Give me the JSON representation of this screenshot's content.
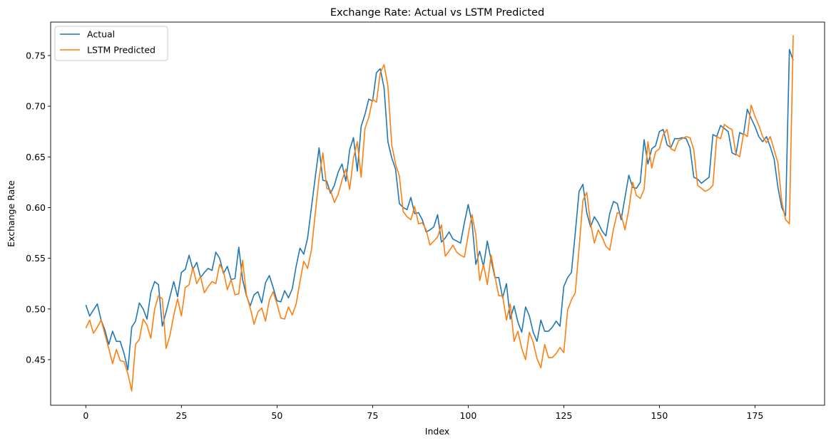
{
  "chart_data": {
    "type": "line",
    "title": "Exchange Rate: Actual vs LSTM Predicted",
    "xlabel": "Index",
    "ylabel": "Exchange Rate",
    "xlim": [
      -9.2,
      193.2
    ],
    "ylim": [
      0.405,
      0.783
    ],
    "x_ticks": [
      0,
      25,
      50,
      75,
      100,
      125,
      150,
      175
    ],
    "y_ticks": [
      0.45,
      0.5,
      0.55,
      0.6,
      0.65,
      0.7,
      0.75
    ],
    "x_tick_labels": [
      "0",
      "25",
      "50",
      "75",
      "100",
      "125",
      "150",
      "175"
    ],
    "y_tick_labels": [
      "0.45",
      "0.50",
      "0.55",
      "0.60",
      "0.65",
      "0.70",
      "0.75"
    ],
    "grid": false,
    "legend_position": "top-left",
    "series": [
      {
        "name": "Actual",
        "color": "#1f77b4",
        "values": [
          0.504,
          0.493,
          0.499,
          0.505,
          0.489,
          0.479,
          0.465,
          0.478,
          0.468,
          0.468,
          0.456,
          0.44,
          0.482,
          0.488,
          0.506,
          0.5,
          0.49,
          0.516,
          0.527,
          0.524,
          0.483,
          0.497,
          0.512,
          0.527,
          0.512,
          0.536,
          0.539,
          0.553,
          0.539,
          0.546,
          0.531,
          0.536,
          0.54,
          0.538,
          0.556,
          0.55,
          0.535,
          0.542,
          0.529,
          0.53,
          0.561,
          0.529,
          0.513,
          0.503,
          0.514,
          0.517,
          0.506,
          0.526,
          0.533,
          0.521,
          0.508,
          0.507,
          0.518,
          0.511,
          0.52,
          0.542,
          0.56,
          0.554,
          0.57,
          0.6,
          0.63,
          0.659,
          0.627,
          0.626,
          0.614,
          0.622,
          0.635,
          0.643,
          0.626,
          0.657,
          0.669,
          0.636,
          0.68,
          0.692,
          0.707,
          0.705,
          0.733,
          0.737,
          0.718,
          0.665,
          0.649,
          0.638,
          0.604,
          0.6,
          0.598,
          0.61,
          0.594,
          0.595,
          0.588,
          0.576,
          0.578,
          0.581,
          0.593,
          0.566,
          0.57,
          0.576,
          0.569,
          0.567,
          0.565,
          0.585,
          0.603,
          0.585,
          0.544,
          0.557,
          0.542,
          0.567,
          0.548,
          0.531,
          0.531,
          0.511,
          0.525,
          0.49,
          0.503,
          0.487,
          0.477,
          0.502,
          0.493,
          0.477,
          0.468,
          0.489,
          0.478,
          0.478,
          0.482,
          0.488,
          0.483,
          0.522,
          0.531,
          0.536,
          0.575,
          0.616,
          0.623,
          0.595,
          0.581,
          0.591,
          0.585,
          0.577,
          0.572,
          0.594,
          0.606,
          0.604,
          0.588,
          0.61,
          0.632,
          0.62,
          0.619,
          0.625,
          0.667,
          0.643,
          0.658,
          0.661,
          0.675,
          0.677,
          0.662,
          0.659,
          0.668,
          0.668,
          0.669,
          0.668,
          0.659,
          0.63,
          0.628,
          0.624,
          0.627,
          0.63,
          0.672,
          0.67,
          0.681,
          0.678,
          0.675,
          0.654,
          0.652,
          0.674,
          0.672,
          0.697,
          0.688,
          0.68,
          0.67,
          0.665,
          0.67,
          0.66,
          0.648,
          0.62,
          0.6,
          0.592,
          0.756,
          0.745
        ]
      },
      {
        "name": "LSTM Predicted",
        "color": "#ff7f0e",
        "values": [
          0.481,
          0.489,
          0.476,
          0.482,
          0.489,
          0.475,
          0.461,
          0.446,
          0.46,
          0.449,
          0.448,
          0.436,
          0.419,
          0.465,
          0.47,
          0.49,
          0.484,
          0.471,
          0.5,
          0.513,
          0.51,
          0.461,
          0.474,
          0.494,
          0.51,
          0.493,
          0.521,
          0.524,
          0.541,
          0.525,
          0.532,
          0.516,
          0.522,
          0.527,
          0.525,
          0.544,
          0.537,
          0.519,
          0.529,
          0.514,
          0.515,
          0.548,
          0.514,
          0.501,
          0.485,
          0.497,
          0.501,
          0.488,
          0.509,
          0.517,
          0.505,
          0.491,
          0.49,
          0.502,
          0.494,
          0.505,
          0.527,
          0.547,
          0.54,
          0.558,
          0.594,
          0.629,
          0.654,
          0.619,
          0.617,
          0.605,
          0.613,
          0.627,
          0.638,
          0.618,
          0.649,
          0.665,
          0.63,
          0.678,
          0.689,
          0.707,
          0.704,
          0.733,
          0.741,
          0.72,
          0.662,
          0.643,
          0.631,
          0.596,
          0.591,
          0.588,
          0.601,
          0.584,
          0.585,
          0.578,
          0.563,
          0.567,
          0.571,
          0.583,
          0.552,
          0.557,
          0.563,
          0.556,
          0.553,
          0.551,
          0.573,
          0.593,
          0.573,
          0.528,
          0.544,
          0.524,
          0.553,
          0.532,
          0.513,
          0.513,
          0.489,
          0.505,
          0.468,
          0.478,
          0.461,
          0.45,
          0.477,
          0.467,
          0.451,
          0.442,
          0.465,
          0.452,
          0.452,
          0.456,
          0.462,
          0.457,
          0.499,
          0.509,
          0.516,
          0.56,
          0.607,
          0.615,
          0.584,
          0.565,
          0.578,
          0.571,
          0.562,
          0.558,
          0.579,
          0.595,
          0.593,
          0.578,
          0.598,
          0.625,
          0.612,
          0.609,
          0.618,
          0.665,
          0.639,
          0.655,
          0.658,
          0.672,
          0.677,
          0.658,
          0.656,
          0.666,
          0.668,
          0.67,
          0.669,
          0.657,
          0.622,
          0.619,
          0.616,
          0.618,
          0.622,
          0.67,
          0.668,
          0.682,
          0.679,
          0.677,
          0.653,
          0.65,
          0.673,
          0.67,
          0.701,
          0.69,
          0.681,
          0.67,
          0.664,
          0.67,
          0.657,
          0.644,
          0.606,
          0.588,
          0.584,
          0.77
        ]
      }
    ]
  }
}
